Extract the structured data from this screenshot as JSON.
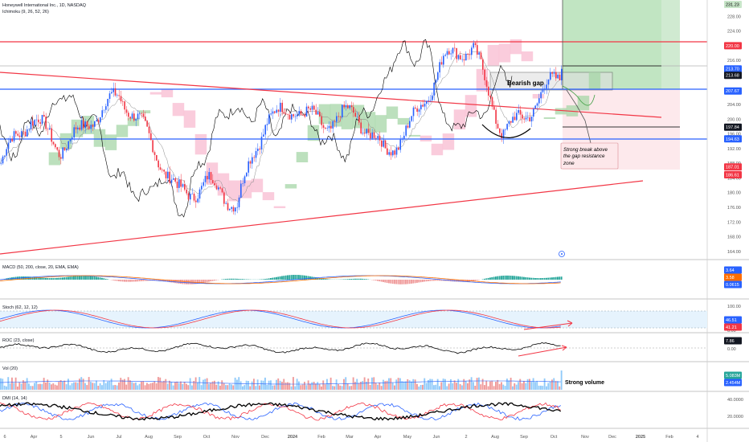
{
  "header": {
    "symbol_title": "Honeywell International Inc., 1D, NASDAQ",
    "ichimoku_label": "Ichimoku (9, 26, 52, 26)"
  },
  "colors": {
    "up": "#2962ff",
    "down": "#f23645",
    "resistance_red": "#f23645",
    "support_blue": "#2962ff",
    "trend_red": "#f23645",
    "cloud_green": "#a5d6a7",
    "cloud_red": "#f8bbd0",
    "target_green": "#c8e6c9",
    "stop_red": "#fde7ea",
    "macd_line": "#2962ff",
    "signal_line": "#ff6d00",
    "black": "#000000"
  },
  "annotations": {
    "bearish_gap": "Bearish gap",
    "strong_break_line1": "Strong break above",
    "strong_break_line2": "the gap resistance",
    "strong_break_line3": "zone",
    "strong_volume": "Strong volume"
  },
  "price_axis": {
    "ticks": [
      "228.00",
      "224.00",
      "220.00",
      "216.00",
      "212.00",
      "208.00",
      "204.00",
      "200.00",
      "196.00",
      "192.00",
      "188.00",
      "184.00",
      "180.00",
      "176.00",
      "172.00",
      "168.00",
      "164.00"
    ],
    "badges": [
      {
        "label": "231.23",
        "color": "#c8e6c9",
        "text": "#000000"
      },
      {
        "label": "220.00",
        "color": "#f23645",
        "text": "#ffffff"
      },
      {
        "label": "213.70",
        "color": "#2962ff",
        "text": "#ffffff"
      },
      {
        "label": "213.68",
        "color": "#131722",
        "text": "#ffffff"
      },
      {
        "label": "207.67",
        "color": "#2962ff",
        "text": "#ffffff"
      },
      {
        "label": "197.84",
        "color": "#131722",
        "text": "#ffffff"
      },
      {
        "label": "194.63",
        "color": "#2962ff",
        "text": "#ffffff"
      },
      {
        "label": "187.01",
        "color": "#f23645",
        "text": "#ffffff"
      },
      {
        "label": "186.61",
        "color": "#f23645",
        "text": "#ffffff"
      }
    ]
  },
  "panes": {
    "macd": {
      "label": "MACD (50, 200, close, 20, EMA, EMA)",
      "badges": [
        "3.64",
        "3.58",
        "0.0615"
      ]
    },
    "stoch": {
      "label": "Stoch (62, 12, 12)",
      "ticks": [
        "100.00",
        "0.00"
      ],
      "badges": [
        "46.51",
        "41.21"
      ]
    },
    "roc": {
      "label": "ROC (23, close)",
      "ticks": [
        "0.00"
      ],
      "badges": [
        "7.86"
      ]
    },
    "vol": {
      "label": "Vol (20)",
      "badges": [
        "5.083M",
        "2.454M"
      ]
    },
    "dmi": {
      "label": "DMI (14, 14)",
      "ticks": [
        "40.0000",
        "20.0000"
      ]
    }
  },
  "time_axis": {
    "labels": [
      "6",
      "Apr",
      "5",
      "Jun",
      "Jul",
      "Aug",
      "Sep",
      "Oct",
      "Nov",
      "Dec",
      "2024",
      "Feb",
      "Mar",
      "Apr",
      "May",
      "Jun",
      "2",
      "Aug",
      "Sep",
      "Oct",
      "Nov",
      "Dec",
      "2025",
      "Feb",
      "4"
    ]
  },
  "chart_data": {
    "type": "candlestick",
    "ylim": [
      162,
      232
    ],
    "levels": {
      "resistance": 220.0,
      "gap_top": 213.7,
      "gap_mid": 213.68,
      "support_upper": 207.67,
      "stop": 197.84,
      "support_lower": 194.63,
      "target": 231.23
    },
    "price_path_keypoints": [
      {
        "x": "Mar 2023",
        "y": 188
      },
      {
        "x": "Apr 2023",
        "y": 198
      },
      {
        "x": "May 2023",
        "y": 193
      },
      {
        "x": "Jun 2023",
        "y": 202
      },
      {
        "x": "Jul 2023",
        "y": 205
      },
      {
        "x": "Aug 2023",
        "y": 193
      },
      {
        "x": "Sep 2023",
        "y": 182
      },
      {
        "x": "Oct 2023",
        "y": 184
      },
      {
        "x": "Nov 2023",
        "y": 174
      },
      {
        "x": "Dec 2023",
        "y": 200
      },
      {
        "x": "Jan 2024",
        "y": 206
      },
      {
        "x": "Feb 2024",
        "y": 198
      },
      {
        "x": "Mar 2024",
        "y": 199
      },
      {
        "x": "Apr 2024",
        "y": 192
      },
      {
        "x": "May 2024",
        "y": 202
      },
      {
        "x": "Jun 2024",
        "y": 214
      },
      {
        "x": "Jul 2024",
        "y": 218
      },
      {
        "x": "Aug 2024",
        "y": 199
      },
      {
        "x": "Sep 2024",
        "y": 204
      },
      {
        "x": "Oct 2024",
        "y": 210
      }
    ]
  }
}
